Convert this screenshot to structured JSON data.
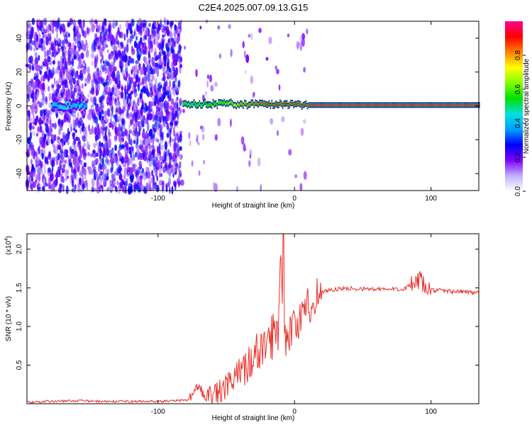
{
  "title": "C2E4.2025.007.09.13.G15",
  "chart_data": [
    {
      "type": "heatmap",
      "xlabel": "Height of straight line (km)",
      "ylabel": "Frequency (Hz)",
      "xlim": [
        -196,
        135
      ],
      "ylim": [
        -50,
        50
      ],
      "xticks": [
        -100,
        0,
        100
      ],
      "yticks": [
        -40,
        -20,
        0,
        20,
        40
      ],
      "colorbar": {
        "label": "Normalized spectral amplitude",
        "range": [
          0,
          1
        ],
        "ticks": [
          0.0,
          0.2,
          0.4,
          0.6,
          0.8
        ],
        "colors": [
          "#ffffff",
          "#c2b0ff",
          "#7f00ff",
          "#0000ff",
          "#00a0ff",
          "#00e0e0",
          "#00e000",
          "#80ff00",
          "#ffff00",
          "#ff8000",
          "#ff0000",
          "#ff0090"
        ]
      },
      "ridge": [
        {
          "x": -175,
          "f": 0.0,
          "a": 0.35
        },
        {
          "x": -165,
          "f": 0.5,
          "a": 0.38
        },
        {
          "x": -155,
          "f": 0.3,
          "a": 0.36
        },
        {
          "x": -80,
          "f": 0.5,
          "a": 0.5
        },
        {
          "x": -70,
          "f": 1.5,
          "a": 0.5
        },
        {
          "x": -60,
          "f": 1.0,
          "a": 0.55
        },
        {
          "x": -50,
          "f": 1.5,
          "a": 0.6
        },
        {
          "x": -40,
          "f": 1.0,
          "a": 0.8
        },
        {
          "x": -30,
          "f": 1.0,
          "a": 0.85
        },
        {
          "x": -20,
          "f": 1.0,
          "a": 0.9
        },
        {
          "x": -10,
          "f": 1.0,
          "a": 0.9
        },
        {
          "x": 0,
          "f": 1.0,
          "a": 0.92
        },
        {
          "x": 10,
          "f": 0.5,
          "a": 0.95
        },
        {
          "x": 50,
          "f": 0.5,
          "a": 0.95
        },
        {
          "x": 100,
          "f": 0.5,
          "a": 0.95
        },
        {
          "x": 135,
          "f": 0.5,
          "a": 0.95
        }
      ]
    },
    {
      "type": "line",
      "xlabel": "Height of straight line (km)",
      "ylabel": "SNR (10 * v/v)",
      "multiplier_label": "(x10",
      "multiplier_exponent": "4",
      "xlim": [
        -196,
        135
      ],
      "ylim": [
        0,
        2.2
      ],
      "xticks": [
        -100,
        0,
        100
      ],
      "yticks": [
        0.5,
        1.0,
        1.5,
        2.0
      ],
      "color": "#e8302a",
      "series": [
        {
          "x": [
            -196,
            -180,
            -160,
            -140,
            -120,
            -100,
            -85,
            -78,
            -74,
            -70,
            -65,
            -60,
            -55,
            -50,
            -45,
            -40,
            -35,
            -30,
            -25,
            -20,
            -15,
            -12,
            -10,
            -8,
            -5,
            0,
            5,
            10,
            15,
            20,
            25,
            30,
            40,
            50,
            60,
            70,
            80,
            88,
            92,
            96,
            100,
            110,
            120,
            135
          ],
          "y": [
            0.02,
            0.03,
            0.04,
            0.03,
            0.03,
            0.03,
            0.04,
            0.05,
            0.15,
            0.22,
            0.14,
            0.1,
            0.15,
            0.2,
            0.3,
            0.4,
            0.5,
            0.6,
            0.7,
            0.8,
            0.9,
            1.0,
            2.15,
            0.85,
            0.9,
            1.0,
            1.1,
            1.25,
            1.4,
            1.45,
            1.47,
            1.48,
            1.49,
            1.49,
            1.48,
            1.48,
            1.49,
            1.55,
            1.6,
            1.5,
            1.47,
            1.46,
            1.45,
            1.44
          ]
        }
      ]
    }
  ]
}
